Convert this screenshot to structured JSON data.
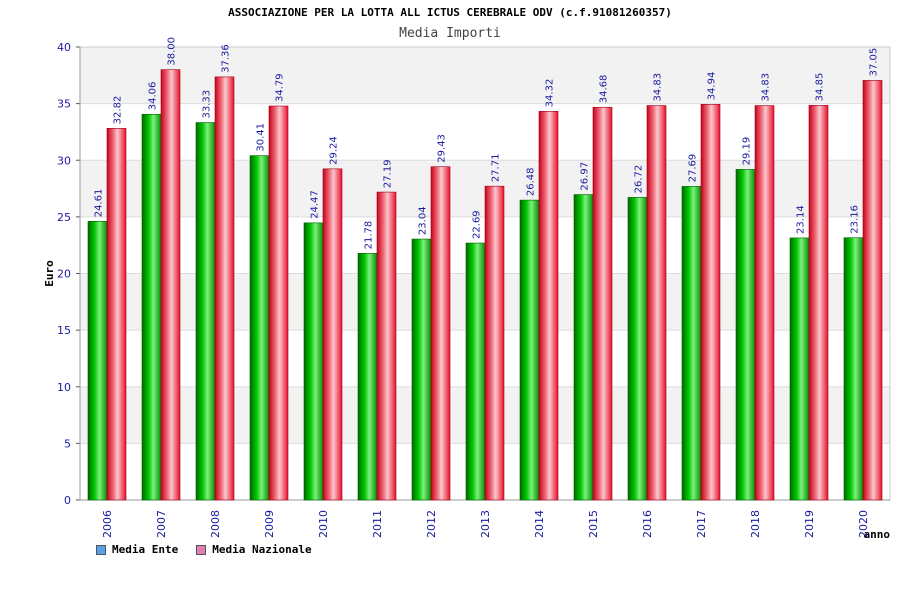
{
  "title": "ASSOCIAZIONE PER LA LOTTA ALL ICTUS CEREBRALE ODV (c.f.91081260357)",
  "subtitle": "Media Importi",
  "chart_data": {
    "type": "bar",
    "ylabel": "Euro",
    "xlabel": "anno",
    "ylim": [
      0,
      40
    ],
    "yticks": [
      0,
      5,
      10,
      15,
      20,
      25,
      30,
      35,
      40
    ],
    "categories": [
      "2006",
      "2007",
      "2008",
      "2009",
      "2010",
      "2011",
      "2012",
      "2013",
      "2014",
      "2015",
      "2016",
      "2017",
      "2018",
      "2019",
      "2020"
    ],
    "series": [
      {
        "name": "Media Ente",
        "color": "#00b000",
        "legend_color": "#5aa0e6",
        "values": [
          24.61,
          34.06,
          33.33,
          30.41,
          24.47,
          21.78,
          23.04,
          22.69,
          26.48,
          26.97,
          26.72,
          27.69,
          29.19,
          23.14,
          23.16
        ],
        "labels": [
          "24.61",
          "34.06",
          "33.33",
          "30.41",
          "24.47",
          "21.78",
          "23.04",
          "22.69",
          "26.48",
          "26.97",
          "26.72",
          "27.69",
          "29.19",
          "23.14",
          "23.16"
        ]
      },
      {
        "name": "Media Nazionale",
        "color": "#e8102a",
        "legend_color": "#e080b0",
        "values": [
          32.82,
          38.0,
          37.36,
          34.79,
          29.24,
          27.19,
          29.43,
          27.71,
          34.32,
          34.68,
          34.83,
          34.94,
          34.83,
          34.85,
          37.05
        ],
        "labels": [
          "32.82",
          "38.00",
          "37.36",
          "34.79",
          "29.24",
          "27.19",
          "29.43",
          "27.71",
          "34.32",
          "34.68",
          "34.83",
          "34.94",
          "34.83",
          "34.85",
          "37.05"
        ]
      }
    ],
    "legend_position": "bottom-left"
  }
}
